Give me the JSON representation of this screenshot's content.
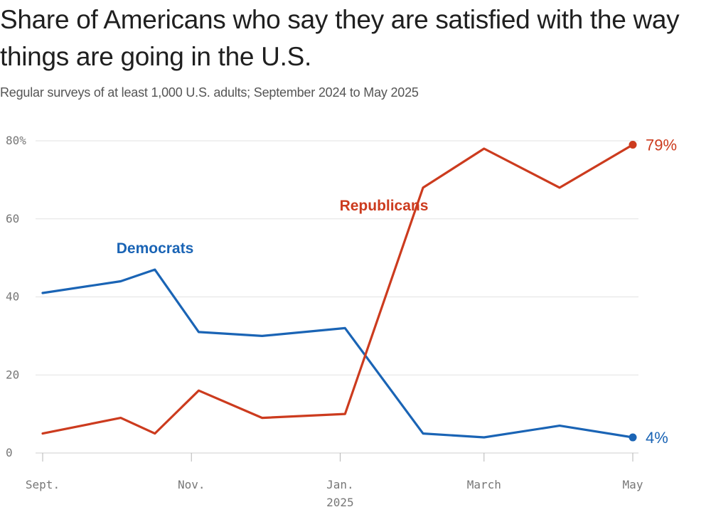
{
  "title": "Share of Americans who say they are satisfied with the way things are going in the U.S.",
  "subtitle": "Regular surveys of at least 1,000 U.S. adults; September 2024 to May 2025",
  "chart_data": {
    "type": "line",
    "title": "Share of Americans who say they are satisfied with the way things are going in the U.S.",
    "subtitle": "Regular surveys of at least 1,000 U.S. adults; September 2024 to May 2025",
    "xlabel": "",
    "ylabel": "",
    "ylim": [
      0,
      80
    ],
    "y_ticks": [
      0,
      20,
      40,
      60,
      80
    ],
    "y_tick_labels": [
      "0",
      "20",
      "40",
      "60",
      "80%"
    ],
    "x_range": [
      "2024-09-01",
      "2025-05-01"
    ],
    "x_ticks": [
      "2024-09-01",
      "2024-11-01",
      "2025-01-01",
      "2025-03-01",
      "2025-05-01"
    ],
    "x_tick_labels": [
      "Sept.",
      "Nov.",
      "Jan.",
      "March",
      "May"
    ],
    "x_year_label": "2025",
    "grid": true,
    "series": [
      {
        "name": "Democrats",
        "color": "#1a64b5",
        "x": [
          "2024-09-01",
          "2024-10-03",
          "2024-10-17",
          "2024-11-04",
          "2024-11-30",
          "2025-01-03",
          "2025-02-04",
          "2025-03-01",
          "2025-04-01",
          "2025-05-01"
        ],
        "y": [
          41,
          44,
          47,
          31,
          30,
          32,
          5,
          4,
          7,
          4
        ],
        "end_label": "4%"
      },
      {
        "name": "Republicans",
        "color": "#cc3b1e",
        "x": [
          "2024-09-01",
          "2024-10-03",
          "2024-10-17",
          "2024-11-04",
          "2024-11-30",
          "2025-01-03",
          "2025-02-04",
          "2025-03-01",
          "2025-04-01",
          "2025-05-01"
        ],
        "y": [
          5,
          9,
          5,
          16,
          9,
          10,
          68,
          78,
          68,
          79
        ],
        "end_label": "79%"
      }
    ]
  }
}
